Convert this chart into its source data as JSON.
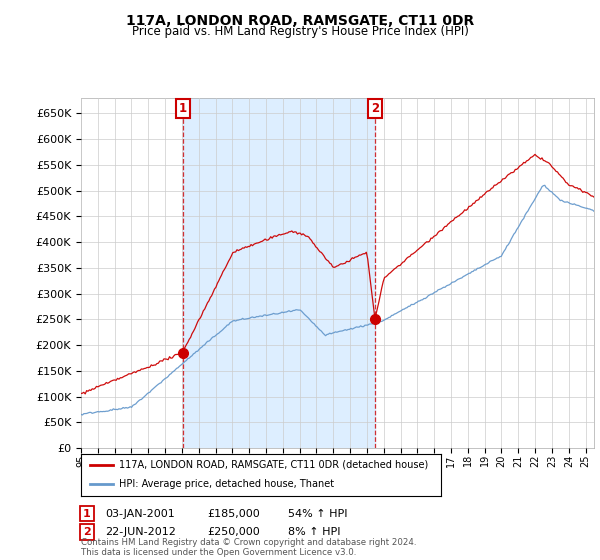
{
  "title": "117A, LONDON ROAD, RAMSGATE, CT11 0DR",
  "subtitle": "Price paid vs. HM Land Registry's House Price Index (HPI)",
  "ylabel_ticks": [
    0,
    50000,
    100000,
    150000,
    200000,
    250000,
    300000,
    350000,
    400000,
    450000,
    500000,
    550000,
    600000,
    650000
  ],
  "ylim": [
    0,
    680000
  ],
  "xlim_start": 1995.0,
  "xlim_end": 2025.5,
  "transaction1_date": 2001.04,
  "transaction1_price": 185000,
  "transaction2_date": 2012.47,
  "transaction2_price": 250000,
  "red_line_color": "#cc0000",
  "blue_line_color": "#6699cc",
  "shade_color": "#ddeeff",
  "grid_color": "#cccccc",
  "background_color": "#ffffff",
  "legend_label_red": "117A, LONDON ROAD, RAMSGATE, CT11 0DR (detached house)",
  "legend_label_blue": "HPI: Average price, detached house, Thanet",
  "footer": "Contains HM Land Registry data © Crown copyright and database right 2024.\nThis data is licensed under the Open Government Licence v3.0.",
  "transaction1_info_date": "03-JAN-2001",
  "transaction1_info_price": "£185,000",
  "transaction1_info_hpi": "54% ↑ HPI",
  "transaction2_info_date": "22-JUN-2012",
  "transaction2_info_price": "£250,000",
  "transaction2_info_hpi": "8% ↑ HPI"
}
